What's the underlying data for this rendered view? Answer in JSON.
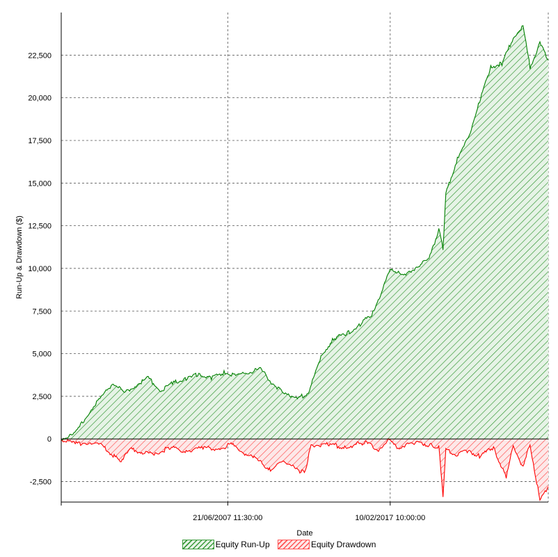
{
  "chart_data": {
    "type": "area",
    "xlabel": "Date",
    "ylabel": "Run-Up & Drawdown ($)",
    "x_tick_labels": [
      "21/06/2007 11:30:00",
      "10/02/2017 10:00:00"
    ],
    "x_ticks": [
      "2007-06-21 11:30",
      "2017-02-10 10:00"
    ],
    "x_range": [
      "1997-08-01",
      "2026-07-01"
    ],
    "ylim": [
      -3700,
      25000
    ],
    "y_ticks": [
      -2500,
      0,
      2500,
      5000,
      7500,
      10000,
      12500,
      15000,
      17500,
      20000,
      22500
    ],
    "y_tick_labels": [
      "-2,500",
      "0",
      "2,500",
      "5,000",
      "7,500",
      "10,000",
      "12,500",
      "15,000",
      "17,500",
      "20,000",
      "22,500"
    ],
    "grid": true,
    "legend_position": "bottom",
    "series": [
      {
        "name": "Equity Run-Up",
        "color": "#008000",
        "x": [
          "1997-08-01",
          "1998-06-01",
          "1999-04-01",
          "2000-01-01",
          "2000-09-01",
          "2001-05-01",
          "2002-02-01",
          "2002-10-01",
          "2003-07-01",
          "2004-04-01",
          "2005-01-01",
          "2005-10-01",
          "2006-07-01",
          "2007-04-01",
          "2008-01-01",
          "2008-09-01",
          "2009-06-01",
          "2010-02-01",
          "2010-11-01",
          "2011-07-01",
          "2011-09-01",
          "2012-04-01",
          "2013-01-01",
          "2013-10-01",
          "2014-08-01",
          "2015-05-01",
          "2016-02-01",
          "2016-09-01",
          "2017-03-01",
          "2017-12-01",
          "2018-09-01",
          "2019-06-01",
          "2019-10-01",
          "2020-01-01",
          "2020-04-01",
          "2020-06-01",
          "2021-03-01",
          "2021-10-01",
          "2022-06-01",
          "2023-02-01",
          "2023-10-01",
          "2024-06-01",
          "2025-01-01",
          "2025-06-01",
          "2026-01-01",
          "2026-07-01"
        ],
        "values": [
          0,
          300,
          1600,
          2500,
          3300,
          2700,
          3200,
          3600,
          2800,
          3300,
          3500,
          3800,
          3600,
          3900,
          3700,
          3900,
          4100,
          3300,
          2600,
          2500,
          2400,
          2700,
          4800,
          5900,
          6200,
          6700,
          7400,
          8800,
          10000,
          9500,
          10100,
          10500,
          11500,
          12300,
          11200,
          14400,
          16600,
          17600,
          19800,
          21800,
          22000,
          23500,
          24200,
          21800,
          23200,
          22200
        ]
      },
      {
        "name": "Equity Drawdown",
        "color": "#ff0000",
        "x": [
          "1997-08-01",
          "1998-06-01",
          "1999-04-01",
          "2000-01-01",
          "2001-02-01",
          "2001-10-01",
          "2002-06-01",
          "2003-03-01",
          "2004-01-01",
          "2005-01-01",
          "2006-01-01",
          "2007-01-01",
          "2007-09-01",
          "2008-06-01",
          "2009-03-01",
          "2010-01-01",
          "2010-09-01",
          "2011-05-01",
          "2011-10-01",
          "2012-02-01",
          "2012-06-01",
          "2013-06-01",
          "2014-06-01",
          "2015-08-01",
          "2016-06-01",
          "2017-01-01",
          "2017-08-01",
          "2018-09-01",
          "2019-09-01",
          "2020-01-01",
          "2020-04-01",
          "2020-06-01",
          "2021-01-01",
          "2021-10-01",
          "2022-06-01",
          "2023-04-01",
          "2024-01-01",
          "2024-06-01",
          "2025-01-01",
          "2025-06-01",
          "2026-01-01",
          "2026-07-01"
        ],
        "values": [
          0,
          -300,
          -200,
          -400,
          -1300,
          -600,
          -800,
          -900,
          -500,
          -700,
          -500,
          -600,
          -300,
          -800,
          -1200,
          -1800,
          -1400,
          -1500,
          -2000,
          -1800,
          -400,
          -300,
          -500,
          -200,
          -600,
          -100,
          -500,
          -200,
          -400,
          -500,
          -3300,
          -600,
          -900,
          -700,
          -1000,
          -500,
          -2300,
          -400,
          -1700,
          -300,
          -3600,
          -2800
        ]
      }
    ]
  }
}
